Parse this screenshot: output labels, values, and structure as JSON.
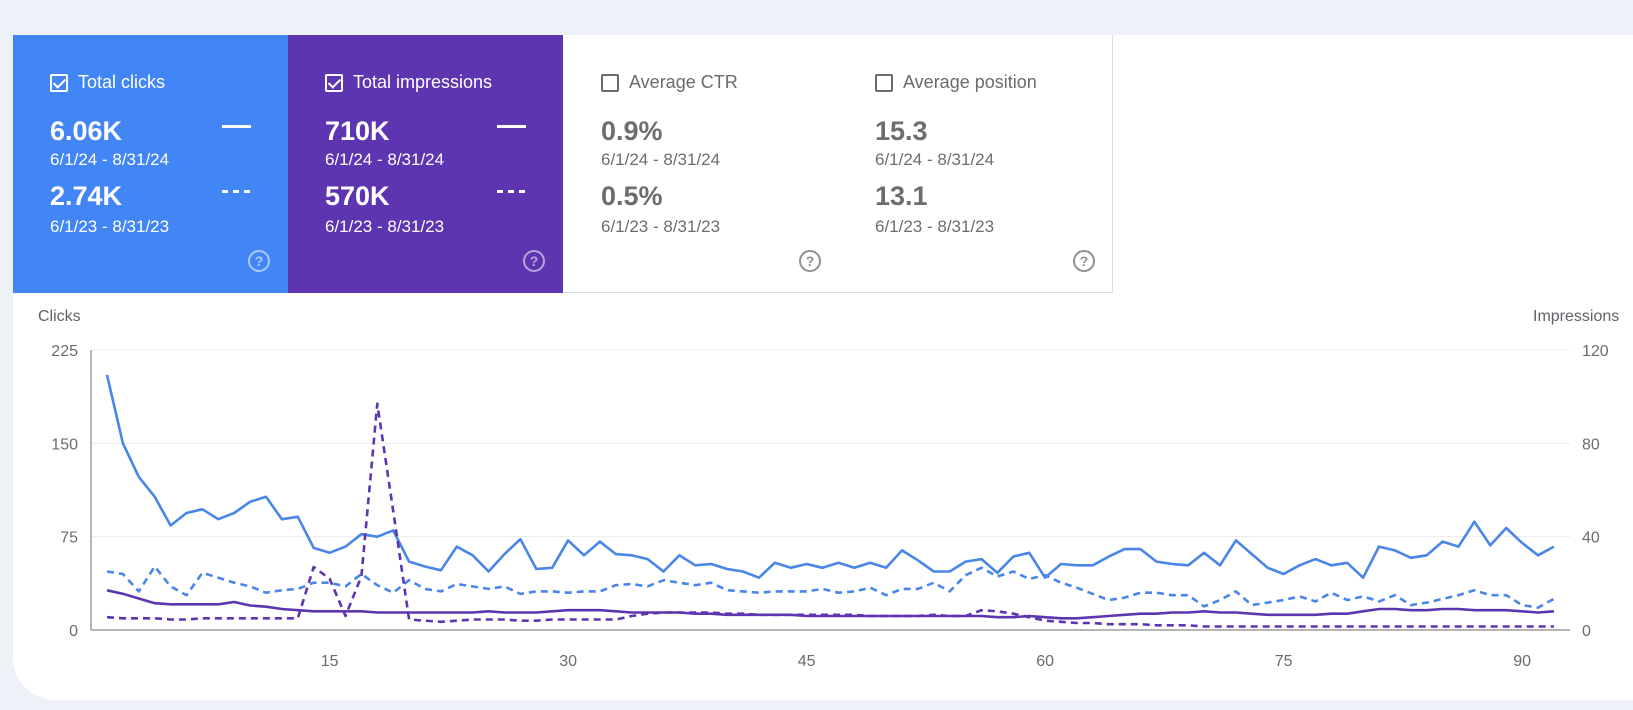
{
  "tiles": [
    {
      "label": "Total clicks",
      "checked": true,
      "current_value": "6.06K",
      "current_range": "6/1/24 - 8/31/24",
      "previous_value": "2.74K",
      "previous_range": "6/1/23 - 8/31/23",
      "help": "?",
      "color": "#4285f4"
    },
    {
      "label": "Total impressions",
      "checked": true,
      "current_value": "710K",
      "current_range": "6/1/24 - 8/31/24",
      "previous_value": "570K",
      "previous_range": "6/1/23 - 8/31/23",
      "help": "?",
      "color": "#5e35b1"
    },
    {
      "label": "Average CTR",
      "checked": false,
      "current_value": "0.9%",
      "current_range": "6/1/24 - 8/31/24",
      "previous_value": "0.5%",
      "previous_range": "6/1/23 - 8/31/23",
      "help": "?"
    },
    {
      "label": "Average position",
      "checked": false,
      "current_value": "15.3",
      "current_range": "6/1/24 - 8/31/24",
      "previous_value": "13.1",
      "previous_range": "6/1/23 - 8/31/23",
      "help": "?"
    }
  ],
  "chart_data": {
    "type": "line",
    "left_axis": {
      "label": "Clicks",
      "ticks": [
        "225",
        "150",
        "75",
        "0"
      ],
      "range": [
        0,
        225
      ]
    },
    "right_axis": {
      "label": "Impressions",
      "ticks": [
        "120",
        "80",
        "40",
        "0"
      ],
      "range": [
        0,
        120
      ]
    },
    "x_ticks": [
      "15",
      "30",
      "45",
      "60",
      "75",
      "90"
    ],
    "x_range": [
      1,
      92
    ],
    "grid": true,
    "series": [
      {
        "metric": "clicks",
        "period": "6/1/24 - 8/31/24",
        "style": "solid",
        "color": "#4a85e8",
        "axis": "left",
        "values": [
          205,
          150,
          123,
          107,
          84,
          94,
          97,
          89,
          94,
          103,
          107,
          89,
          91,
          66,
          62,
          67,
          77,
          75,
          80,
          55,
          51,
          48,
          67,
          60,
          47,
          61,
          73,
          49,
          50,
          72,
          60,
          71,
          61,
          60,
          57,
          47,
          60,
          52,
          53,
          49,
          47,
          42,
          54,
          50,
          53,
          50,
          54,
          50,
          54,
          50,
          64,
          56,
          47,
          47,
          55,
          57,
          46,
          59,
          62,
          42,
          53,
          52,
          52,
          59,
          65,
          65,
          55,
          53,
          52,
          62,
          52,
          72,
          61,
          50,
          45,
          52,
          57,
          52,
          54,
          42,
          67,
          64,
          58,
          60,
          71,
          67,
          87,
          68,
          82,
          70,
          60,
          67
        ]
      },
      {
        "metric": "clicks",
        "period": "6/1/23 - 8/31/23",
        "style": "dashed",
        "color": "#4a85e8",
        "axis": "left",
        "values": [
          47,
          45,
          31,
          51,
          35,
          28,
          46,
          42,
          38,
          35,
          30,
          32,
          33,
          38,
          38,
          35,
          45,
          36,
          30,
          40,
          33,
          31,
          37,
          35,
          33,
          35,
          29,
          31,
          31,
          30,
          31,
          31,
          36,
          37,
          35,
          40,
          38,
          36,
          38,
          32,
          31,
          30,
          31,
          31,
          31,
          33,
          30,
          31,
          34,
          28,
          33,
          33,
          38,
          31,
          44,
          50,
          43,
          47,
          41,
          44,
          38,
          34,
          29,
          24,
          26,
          30,
          30,
          28,
          28,
          19,
          24,
          31,
          20,
          22,
          24,
          27,
          23,
          30,
          24,
          27,
          23,
          28,
          20,
          22,
          25,
          28,
          32,
          28,
          28,
          20,
          18,
          25
        ]
      },
      {
        "metric": "impressions",
        "period": "6/1/24 - 8/31/24",
        "style": "solid",
        "color": "#5e35b1",
        "axis": "right",
        "values": [
          17,
          15.5,
          13.5,
          11.5,
          11,
          11,
          11,
          11,
          12,
          10.5,
          10,
          9,
          8.5,
          8,
          8,
          8,
          8,
          7.5,
          7.5,
          7.5,
          7.5,
          7.5,
          7.5,
          7.5,
          8,
          7.5,
          7.5,
          7.5,
          8,
          8.5,
          8.5,
          8.5,
          8,
          7.5,
          7.5,
          7.5,
          7.5,
          7,
          7,
          6.5,
          6.5,
          6.5,
          6.5,
          6.5,
          6,
          6,
          6,
          6,
          6,
          6,
          6,
          6,
          6,
          6,
          6,
          6,
          5.5,
          5.5,
          6,
          5.5,
          5,
          5,
          5.5,
          6,
          6.5,
          7,
          7,
          7.5,
          7.5,
          8,
          7.5,
          7.5,
          7,
          6.5,
          6.5,
          6.5,
          6.5,
          7,
          7,
          8,
          9,
          9,
          8.5,
          8.5,
          9,
          9,
          8.5,
          8.5,
          8.5,
          8,
          7.5,
          8
        ]
      },
      {
        "metric": "impressions",
        "period": "6/1/23 - 8/31/23",
        "style": "dashed",
        "color": "#5e35b1",
        "axis": "right",
        "values": [
          5.5,
          5,
          5,
          5,
          4.5,
          4.5,
          5,
          5,
          5,
          5,
          5,
          5,
          5,
          27,
          22,
          6,
          23,
          97,
          51,
          4.5,
          4,
          3.5,
          4,
          4.5,
          4.5,
          4.5,
          4,
          4,
          4.5,
          4.5,
          4.5,
          4.5,
          4.5,
          6,
          7,
          7.5,
          7.5,
          7.5,
          7.5,
          7,
          7,
          6.5,
          6.5,
          6.5,
          6.5,
          6.5,
          6.5,
          6.5,
          6,
          6,
          6,
          6,
          6.5,
          6,
          6,
          8.5,
          8,
          7,
          5.5,
          4,
          3.5,
          3,
          3,
          2.5,
          2.5,
          2.5,
          2,
          2,
          2,
          1.5,
          1.5,
          1.5,
          1.5,
          1.5,
          1.5,
          1.5,
          1.5,
          1.5,
          1.5,
          1.5,
          1.5,
          1.5,
          1.5,
          1.5,
          1.5,
          1.5,
          1.5,
          1.5,
          1.5,
          1.5,
          1.5,
          1.5
        ]
      }
    ]
  }
}
